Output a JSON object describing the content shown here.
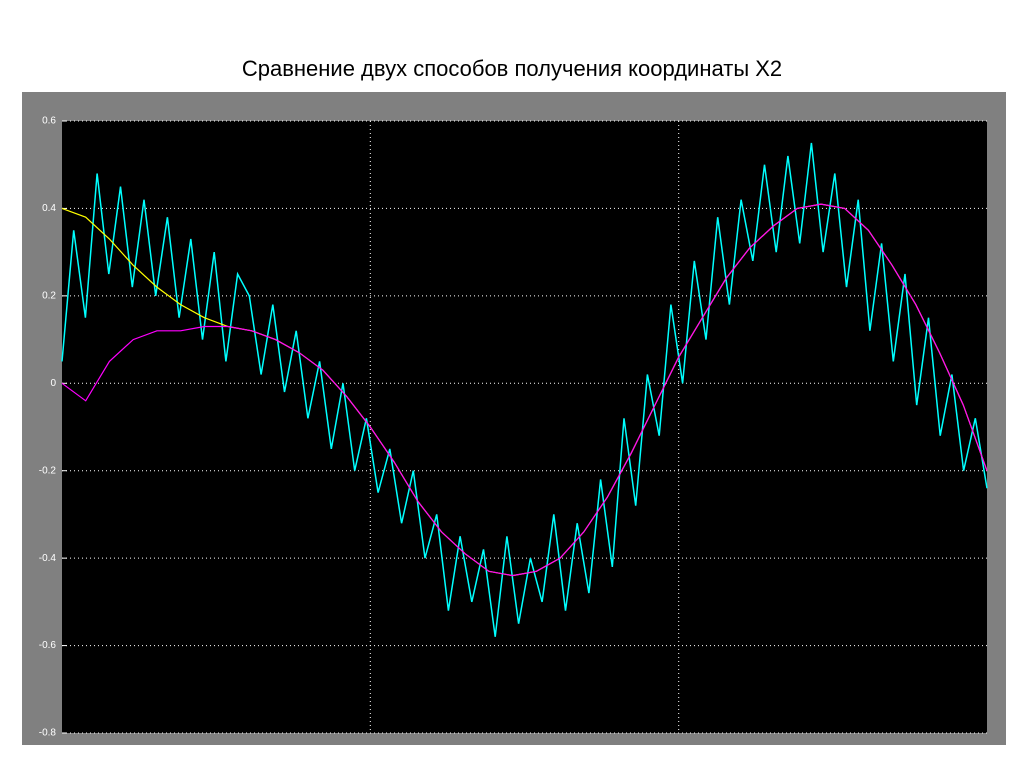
{
  "chart_data": {
    "type": "line",
    "title": "Сравнение двух способов получения координаты X2",
    "ylim": [
      -0.8,
      0.6
    ],
    "yticks": [
      -0.8,
      -0.6,
      -0.4,
      -0.2,
      0,
      0.2,
      0.4,
      0.6
    ],
    "grid": true,
    "series": [
      {
        "color": "#00ffff",
        "values": [
          0.05,
          0.35,
          0.15,
          0.48,
          0.25,
          0.45,
          0.22,
          0.42,
          0.2,
          0.38,
          0.15,
          0.33,
          0.1,
          0.3,
          0.05,
          0.25,
          0.2,
          0.02,
          0.18,
          -0.02,
          0.12,
          -0.08,
          0.05,
          -0.15,
          0.0,
          -0.2,
          -0.08,
          -0.25,
          -0.15,
          -0.32,
          -0.2,
          -0.4,
          -0.3,
          -0.52,
          -0.35,
          -0.5,
          -0.38,
          -0.58,
          -0.35,
          -0.55,
          -0.4,
          -0.5,
          -0.3,
          -0.52,
          -0.32,
          -0.48,
          -0.22,
          -0.42,
          -0.08,
          -0.28,
          0.02,
          -0.12,
          0.18,
          0.0,
          0.28,
          0.1,
          0.38,
          0.18,
          0.42,
          0.28,
          0.5,
          0.3,
          0.52,
          0.32,
          0.55,
          0.3,
          0.48,
          0.22,
          0.42,
          0.12,
          0.32,
          0.05,
          0.25,
          -0.05,
          0.15,
          -0.12,
          0.02,
          -0.2,
          -0.08,
          -0.24
        ]
      },
      {
        "color": "#ffff00",
        "values": [
          0.4,
          0.38,
          0.33,
          0.27,
          0.22,
          0.18,
          0.15,
          0.13,
          0.12,
          0.1,
          0.07,
          0.03,
          -0.03,
          -0.1,
          -0.18,
          -0.27,
          -0.34,
          -0.39,
          -0.43,
          -0.44,
          -0.43,
          -0.4,
          -0.34,
          -0.26,
          -0.16,
          -0.05,
          0.06,
          0.15,
          0.24,
          0.31,
          0.36,
          0.4,
          0.41,
          0.4,
          0.35,
          0.27,
          0.18,
          0.07,
          -0.05,
          -0.2
        ]
      },
      {
        "color": "#ff00ff",
        "values": [
          0.0,
          -0.04,
          0.05,
          0.1,
          0.12,
          0.12,
          0.13,
          0.13,
          0.12,
          0.1,
          0.07,
          0.03,
          -0.03,
          -0.1,
          -0.18,
          -0.27,
          -0.34,
          -0.39,
          -0.43,
          -0.44,
          -0.43,
          -0.4,
          -0.34,
          -0.26,
          -0.16,
          -0.05,
          0.06,
          0.15,
          0.24,
          0.31,
          0.36,
          0.4,
          0.41,
          0.4,
          0.35,
          0.27,
          0.18,
          0.07,
          -0.05,
          -0.2
        ]
      }
    ]
  }
}
